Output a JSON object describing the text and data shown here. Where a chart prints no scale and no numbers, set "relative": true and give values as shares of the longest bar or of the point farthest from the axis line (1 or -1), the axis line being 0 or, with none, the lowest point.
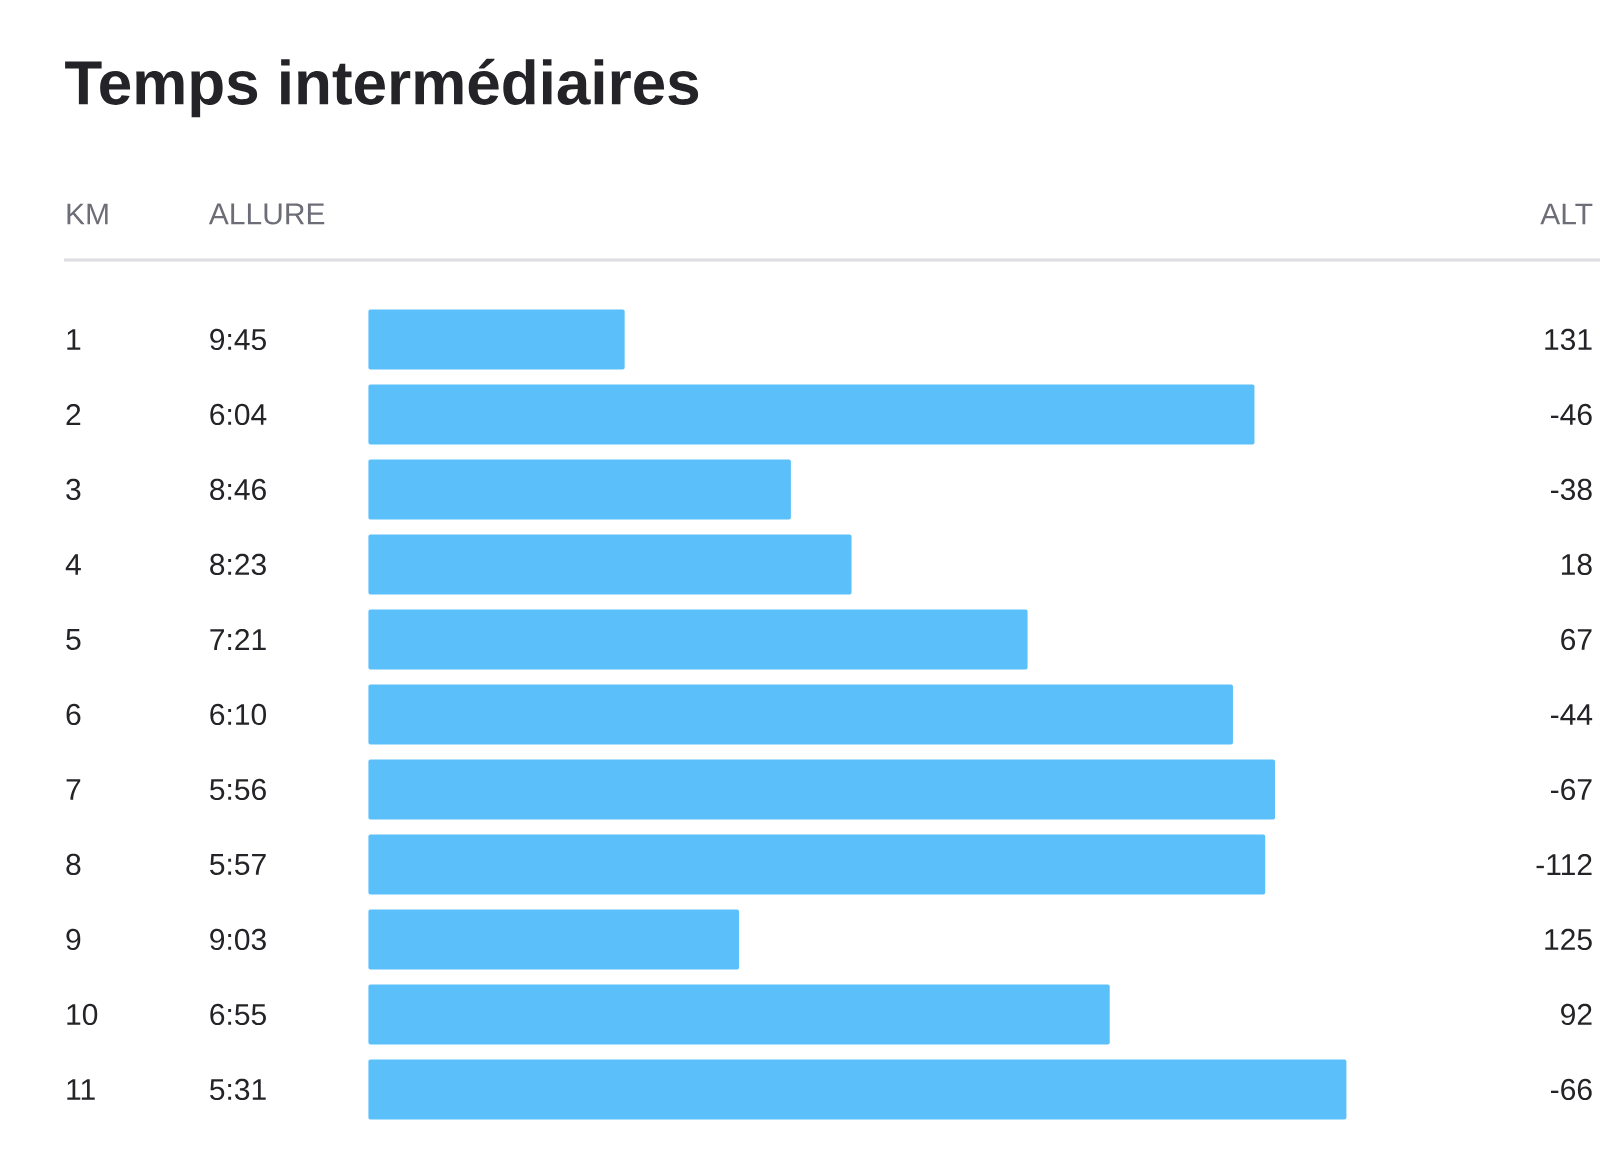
{
  "chart_data": {
    "type": "bar",
    "orientation": "horizontal",
    "relative": true,
    "title": "Temps intermédiaires",
    "categories": [
      "1",
      "2",
      "3",
      "4",
      "5",
      "6",
      "7",
      "8",
      "9",
      "10",
      "11"
    ],
    "values": [
      0.262,
      0.906,
      0.432,
      0.494,
      0.674,
      0.884,
      0.927,
      0.917,
      0.379,
      0.758,
      1
    ],
    "color": "#5bc0fa",
    "annotations": [
      "KM",
      "ALLURE",
      "ALT",
      "9:45",
      "6:04",
      "8:46",
      "8:23",
      "7:21",
      "6:10",
      "5:56",
      "5:57",
      "9:03",
      "6:55",
      "5:31",
      "131",
      "-46",
      "-38",
      "18",
      "67",
      "-44",
      "-67",
      "-112",
      "125",
      "92",
      "-66"
    ]
  }
}
